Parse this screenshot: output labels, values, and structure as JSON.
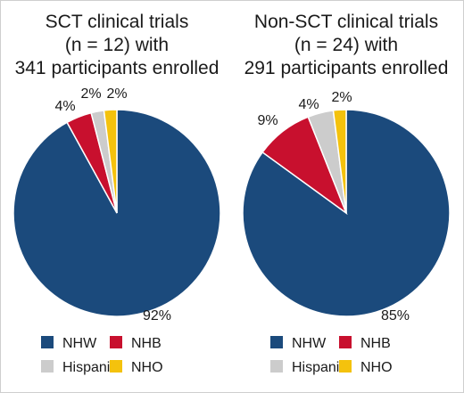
{
  "chart_data": [
    {
      "type": "pie",
      "title_lines": [
        "SCT clinical trials",
        "(n = 12) with",
        "341 participants enrolled"
      ],
      "categories": [
        "NHW",
        "NHB",
        "Hispanic",
        "NHO"
      ],
      "values": [
        92,
        4,
        2,
        2
      ],
      "labels": [
        "92%",
        "4%",
        "2%",
        "2%"
      ],
      "colors": [
        "#1b4a7c",
        "#c8102e",
        "#cccccc",
        "#f4c20d"
      ],
      "legend_position": "bottom"
    },
    {
      "type": "pie",
      "title_lines": [
        "Non-SCT clinical trials",
        "(n = 24) with",
        "291 participants enrolled"
      ],
      "categories": [
        "NHW",
        "NHB",
        "Hispanic",
        "NHO"
      ],
      "values": [
        85,
        9,
        4,
        2
      ],
      "labels": [
        "85%",
        "9%",
        "4%",
        "2%"
      ],
      "colors": [
        "#1b4a7c",
        "#c8102e",
        "#cccccc",
        "#f4c20d"
      ],
      "legend_position": "bottom"
    }
  ]
}
